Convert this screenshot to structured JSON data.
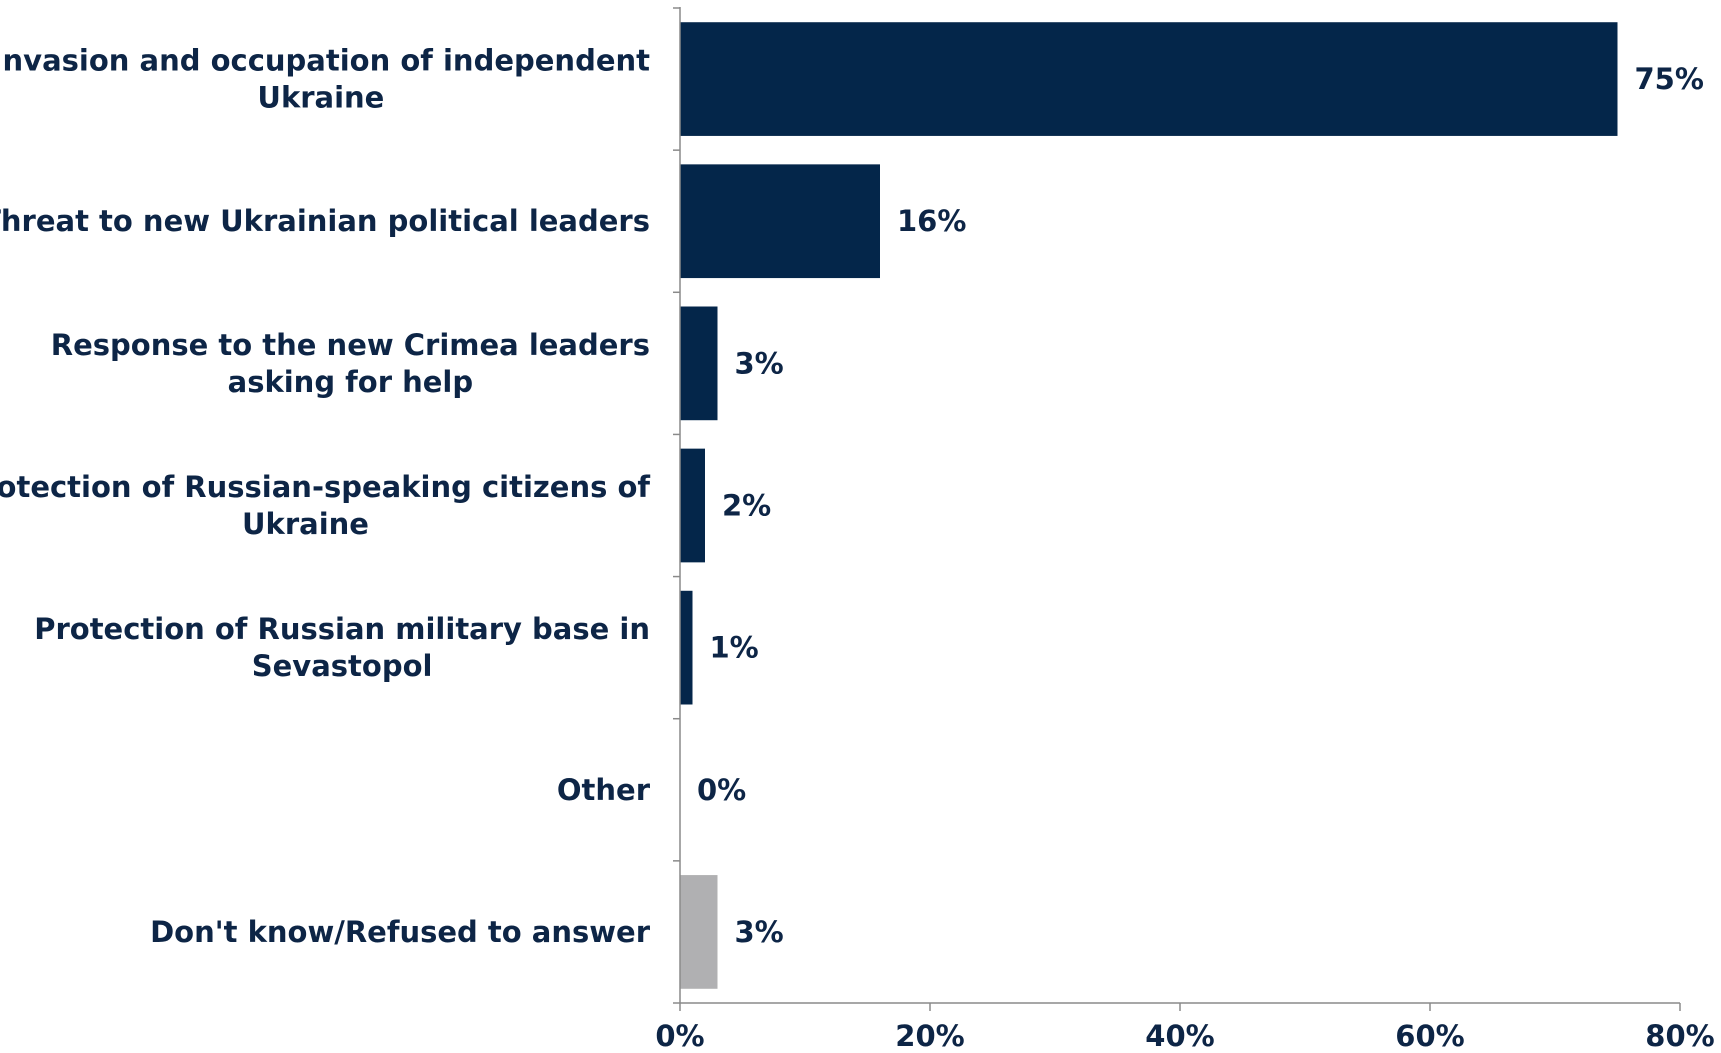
{
  "chart_data": {
    "type": "bar",
    "orientation": "horizontal",
    "categories": [
      [
        "Invasion and occupation of independent",
        "Ukraine"
      ],
      [
        "Threat to new Ukrainian political leaders"
      ],
      [
        "Response to the new Crimea leaders",
        "asking for help"
      ],
      [
        "Protection of Russian-speaking citizens of",
        "Ukraine"
      ],
      [
        "Protection of Russian military base in",
        "Sevastopol"
      ],
      [
        "Other"
      ],
      [
        "Don't know/Refused to answer"
      ]
    ],
    "values": [
      75,
      16,
      3,
      2,
      1,
      0,
      3
    ],
    "value_labels": [
      "75%",
      "16%",
      "3%",
      "2%",
      "1%",
      "0%",
      "3%"
    ],
    "bar_colors": [
      "#04264a",
      "#04264a",
      "#04264a",
      "#04264a",
      "#04264a",
      "#04264a",
      "#b0b0b2"
    ],
    "xlim": [
      0,
      80
    ],
    "xticks": [
      0,
      20,
      40,
      60,
      80
    ],
    "xtick_labels": [
      "0%",
      "20%",
      "40%",
      "60%",
      "80%"
    ],
    "title": "",
    "xlabel": "",
    "ylabel": "",
    "grid": false,
    "legend": "none"
  }
}
